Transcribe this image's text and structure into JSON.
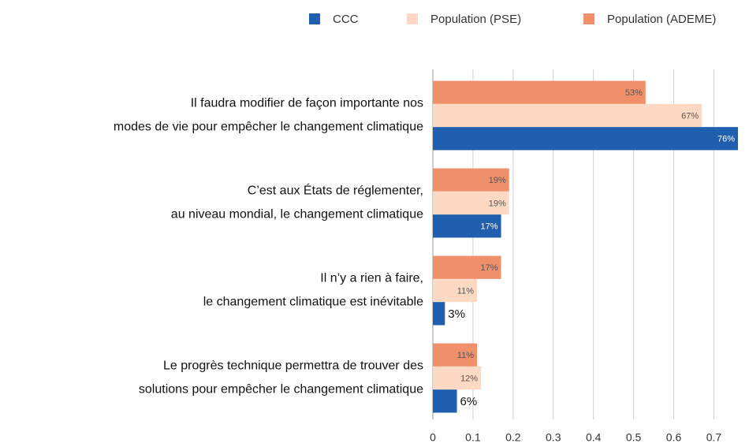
{
  "chart_data": {
    "type": "hbar",
    "categories": [
      [
        "Il faudra modifier de façon importante nos",
        "modes de vie pour empêcher le changement climatique"
      ],
      [
        "C’est aux États de réglementer,",
        "au niveau mondial, le changement climatique"
      ],
      [
        "Il n’y a rien à faire,",
        "le changement climatique est inévitable"
      ],
      [
        "Le progrès technique permettra de trouver des",
        "solutions pour empêcher le changement climatique"
      ]
    ],
    "series": [
      {
        "name": "CCC",
        "color": "#1f5fad",
        "values": [
          0.76,
          0.17,
          0.03,
          0.06
        ],
        "value_labels": [
          "76%",
          "17%",
          "3%",
          "6%"
        ]
      },
      {
        "name": "Population (PSE)",
        "color": "#fdd9c4",
        "values": [
          0.67,
          0.19,
          0.11,
          0.12
        ],
        "value_labels": [
          "67%",
          "19%",
          "11%",
          "12%"
        ]
      },
      {
        "name": "Population (ADEME)",
        "color": "#f0906a",
        "values": [
          0.53,
          0.19,
          0.17,
          0.11
        ],
        "value_labels": [
          "53%",
          "19%",
          "17%",
          "11%"
        ]
      }
    ],
    "xlim": [
      0,
      0.76
    ],
    "xticks": [
      0,
      0.1,
      0.2,
      0.3,
      0.4,
      0.5,
      0.6,
      0.7
    ],
    "grid": true,
    "legend": "top-right"
  }
}
